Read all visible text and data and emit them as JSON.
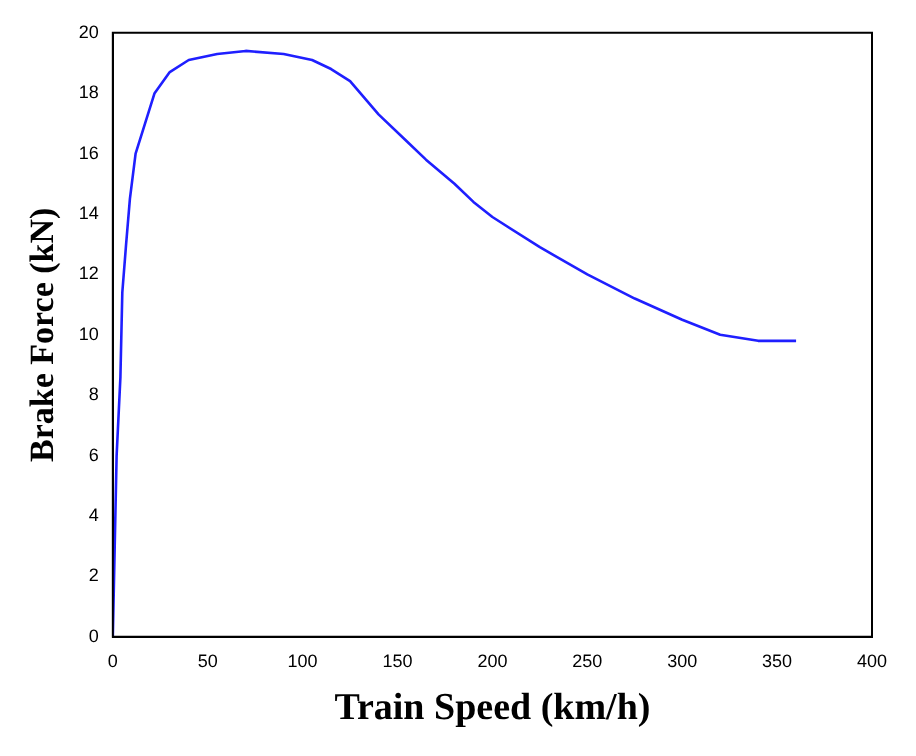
{
  "chart_data": {
    "type": "line",
    "xlabel": "Train Speed (km/h)",
    "ylabel": "Brake Force (kN)",
    "x": [
      0,
      1,
      2,
      4,
      5,
      7,
      9,
      12,
      17,
      22,
      30,
      40,
      55,
      70,
      90,
      105,
      115,
      125,
      140,
      155,
      165,
      180,
      190,
      200,
      225,
      250,
      275,
      300,
      320,
      340,
      360
    ],
    "series": [
      {
        "color": "#1f1fff",
        "values": [
          0,
          3,
          6,
          8.6,
          11.4,
          13,
          14.5,
          16,
          17,
          18,
          18.7,
          19.1,
          19.3,
          19.4,
          19.3,
          19.1,
          18.8,
          18.4,
          17.3,
          16.4,
          15.8,
          15,
          14.4,
          13.9,
          12.9,
          12,
          11.2,
          10.5,
          10,
          9.8,
          9.8
        ]
      }
    ],
    "xlim": [
      0,
      400
    ],
    "xticks": [
      0,
      50,
      100,
      150,
      200,
      250,
      300,
      350,
      400
    ],
    "ylim": [
      0,
      20
    ],
    "yticks": [
      0,
      2,
      4,
      6,
      8,
      10,
      12,
      14,
      16,
      18,
      20
    ],
    "grid": false,
    "legend": false,
    "marker": "none",
    "line_style": "solid"
  }
}
